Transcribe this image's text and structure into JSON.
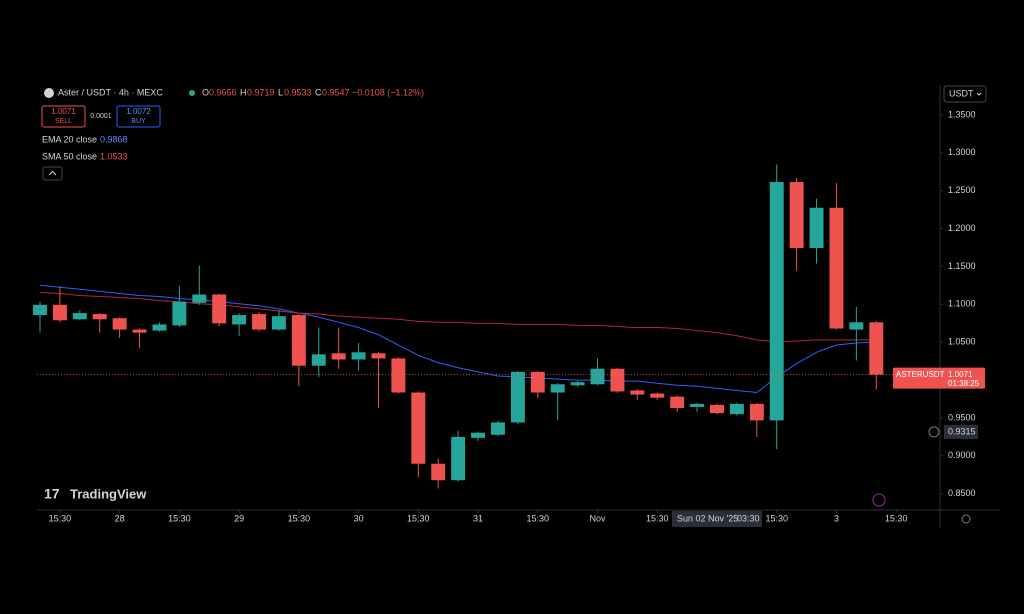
{
  "chart_data": {
    "type": "candlestick",
    "header": {
      "symbol": "Aster / USDT · 4h · MEXC",
      "o_label": "O",
      "open": 0.9656,
      "h_label": "H",
      "high": 0.9719,
      "l_label": "L",
      "low": 0.9533,
      "c_label": "C",
      "close": 0.9547,
      "change": "−0.0108 (−1.12%)"
    },
    "trade": {
      "sell_price": 1.0071,
      "sell": "SELL",
      "spread": 0.0001,
      "buy_price": 1.0072,
      "buy": "BUY"
    },
    "currency": "USDT",
    "logo": "TradingView",
    "up_color": "#26a69a",
    "down_color": "#ef5350",
    "open": [
      1.0857,
      1.0993,
      1.0802,
      1.0871,
      1.0816,
      1.0666,
      1.0653,
      1.0721,
      1.102,
      1.1129,
      1.0734,
      1.0871,
      1.0666,
      1.0857,
      1.0189,
      1.0353,
      1.0271,
      1.0353,
      1.0285,
      0.9835,
      0.8895,
      0.8677,
      0.9236,
      0.9277,
      0.944,
      1.0108,
      0.9835,
      0.9931,
      0.9944,
      1.0149,
      0.9862,
      0.9822,
      0.9781,
      0.9644,
      0.9672,
      0.9549,
      0.9685,
      0.9467,
      1.2614,
      1.1743,
      1.2274,
      1.0666,
      1.0762
    ],
    "high": [
      1.1034,
      1.1238,
      1.0925,
      1.0884,
      1.083,
      1.068,
      1.076,
      1.1238,
      1.1511,
      1.114,
      1.0884,
      1.09,
      1.0925,
      1.087,
      1.0693,
      1.0693,
      1.0489,
      1.0366,
      1.03,
      0.985,
      0.896,
      0.9331,
      0.932,
      0.946,
      1.0121,
      1.0121,
      0.996,
      0.999,
      1.0285,
      1.016,
      0.988,
      0.9835,
      0.98,
      0.97,
      0.969,
      0.97,
      0.97,
      1.2846,
      1.2669,
      1.2396,
      1.2601,
      1.0966,
      1.078
    ],
    "low": [
      1.0625,
      1.0762,
      1.0789,
      1.0625,
      1.0557,
      1.0421,
      1.064,
      1.07,
      1.0993,
      1.0707,
      1.0584,
      1.064,
      1.065,
      0.9917,
      1.004,
      1.0149,
      1.0121,
      0.9631,
      0.982,
      0.8718,
      0.8568,
      0.866,
      0.9195,
      0.926,
      0.942,
      0.9767,
      0.9467,
      0.991,
      0.9931,
      0.983,
      0.974,
      0.974,
      0.9576,
      0.9576,
      0.955,
      0.953,
      0.9249,
      0.9086,
      1.1443,
      1.1538,
      1.0666,
      1.0257,
      0.9876
    ],
    "close": [
      1.0993,
      1.0789,
      1.0884,
      1.0802,
      1.0666,
      1.0625,
      1.0734,
      1.1034,
      1.1129,
      1.0748,
      1.0857,
      1.0666,
      1.0843,
      1.0189,
      1.0339,
      1.0271,
      1.0366,
      1.0285,
      0.9835,
      0.8895,
      0.8677,
      0.9249,
      0.9304,
      0.944,
      1.0108,
      0.9835,
      0.9944,
      0.9971,
      1.0149,
      0.9849,
      0.9808,
      0.9767,
      0.9631,
      0.9685,
      0.9563,
      0.9685,
      0.9467,
      1.2614,
      1.1743,
      1.2274,
      1.068,
      1.0762,
      1.0071
    ],
    "series": [
      {
        "name": "EMA 20 close",
        "legend_value": 0.9868,
        "color": "#2962ff",
        "values": [
          1.1252,
          1.1225,
          1.1198,
          1.117,
          1.1143,
          1.1116,
          1.1102,
          1.1075,
          1.1061,
          1.1034,
          1.1007,
          1.098,
          1.0939,
          1.0884,
          1.083,
          1.0762,
          1.0693,
          1.0598,
          1.0462,
          1.0326,
          1.023,
          1.0162,
          1.0108,
          1.0053,
          1.004,
          1.0026,
          1.0012,
          0.9999,
          0.9999,
          0.9985,
          0.9985,
          0.9958,
          0.9931,
          0.9917,
          0.989,
          0.9862,
          0.9835,
          1.004,
          1.0217,
          1.0366,
          1.0462,
          1.0489,
          1.0503
        ]
      },
      {
        "name": "SMA 50 close",
        "legend_value": 1.0533,
        "color": "#b2283a",
        "values": [
          1.1157,
          1.1143,
          1.1116,
          1.1102,
          1.1089,
          1.1075,
          1.1048,
          1.1034,
          1.1007,
          1.0993,
          1.0966,
          1.0939,
          1.0911,
          1.0884,
          1.0871,
          1.0843,
          1.083,
          1.0816,
          1.0802,
          1.0775,
          1.0762,
          1.0762,
          1.0748,
          1.0748,
          1.0734,
          1.0734,
          1.0734,
          1.0721,
          1.0721,
          1.0707,
          1.0693,
          1.0693,
          1.068,
          1.0653,
          1.0625,
          1.0584,
          1.053,
          1.0503,
          1.0516,
          1.053,
          1.053,
          1.053,
          1.053
        ]
      }
    ],
    "last_label": {
      "symbol": "ASTERUSDT",
      "countdown": "01:38:25"
    },
    "crosshair": {
      "price": 0.9315,
      "date": "Sun 02 Nov '25",
      "time": "03:30",
      "index": 34
    },
    "ylim": [
      0.8284,
      1.3895
    ],
    "yticks": [
      {
        "value": 1.35,
        "label": "1.3500"
      },
      {
        "value": 1.3,
        "label": "1.3000"
      },
      {
        "value": 1.25,
        "label": "1.2500"
      },
      {
        "value": 1.2,
        "label": "1.2000"
      },
      {
        "value": 1.15,
        "label": "1.1500"
      },
      {
        "value": 1.1,
        "label": "1.1000"
      },
      {
        "value": 1.05,
        "label": "1.0500"
      },
      {
        "value": 0.95,
        "label": "0.9500"
      },
      {
        "value": 0.9,
        "label": "0.9000"
      },
      {
        "value": 0.85,
        "label": "0.8500"
      }
    ],
    "xlim": [
      -0.15,
      45.2
    ],
    "xticks": [
      {
        "value": 1,
        "label": "15:30"
      },
      {
        "value": 4,
        "label": "28"
      },
      {
        "value": 7,
        "label": "15:30"
      },
      {
        "value": 10,
        "label": "29"
      },
      {
        "value": 13,
        "label": "15:30"
      },
      {
        "value": 16,
        "label": "30"
      },
      {
        "value": 19,
        "label": "15:30"
      },
      {
        "value": 22,
        "label": "31"
      },
      {
        "value": 25,
        "label": "15:30"
      },
      {
        "value": 28,
        "label": "Nov"
      },
      {
        "value": 31,
        "label": "15:30"
      },
      {
        "value": 37,
        "label": "15:30"
      },
      {
        "value": 40,
        "label": "3"
      },
      {
        "value": 43,
        "label": "15:30"
      }
    ]
  }
}
